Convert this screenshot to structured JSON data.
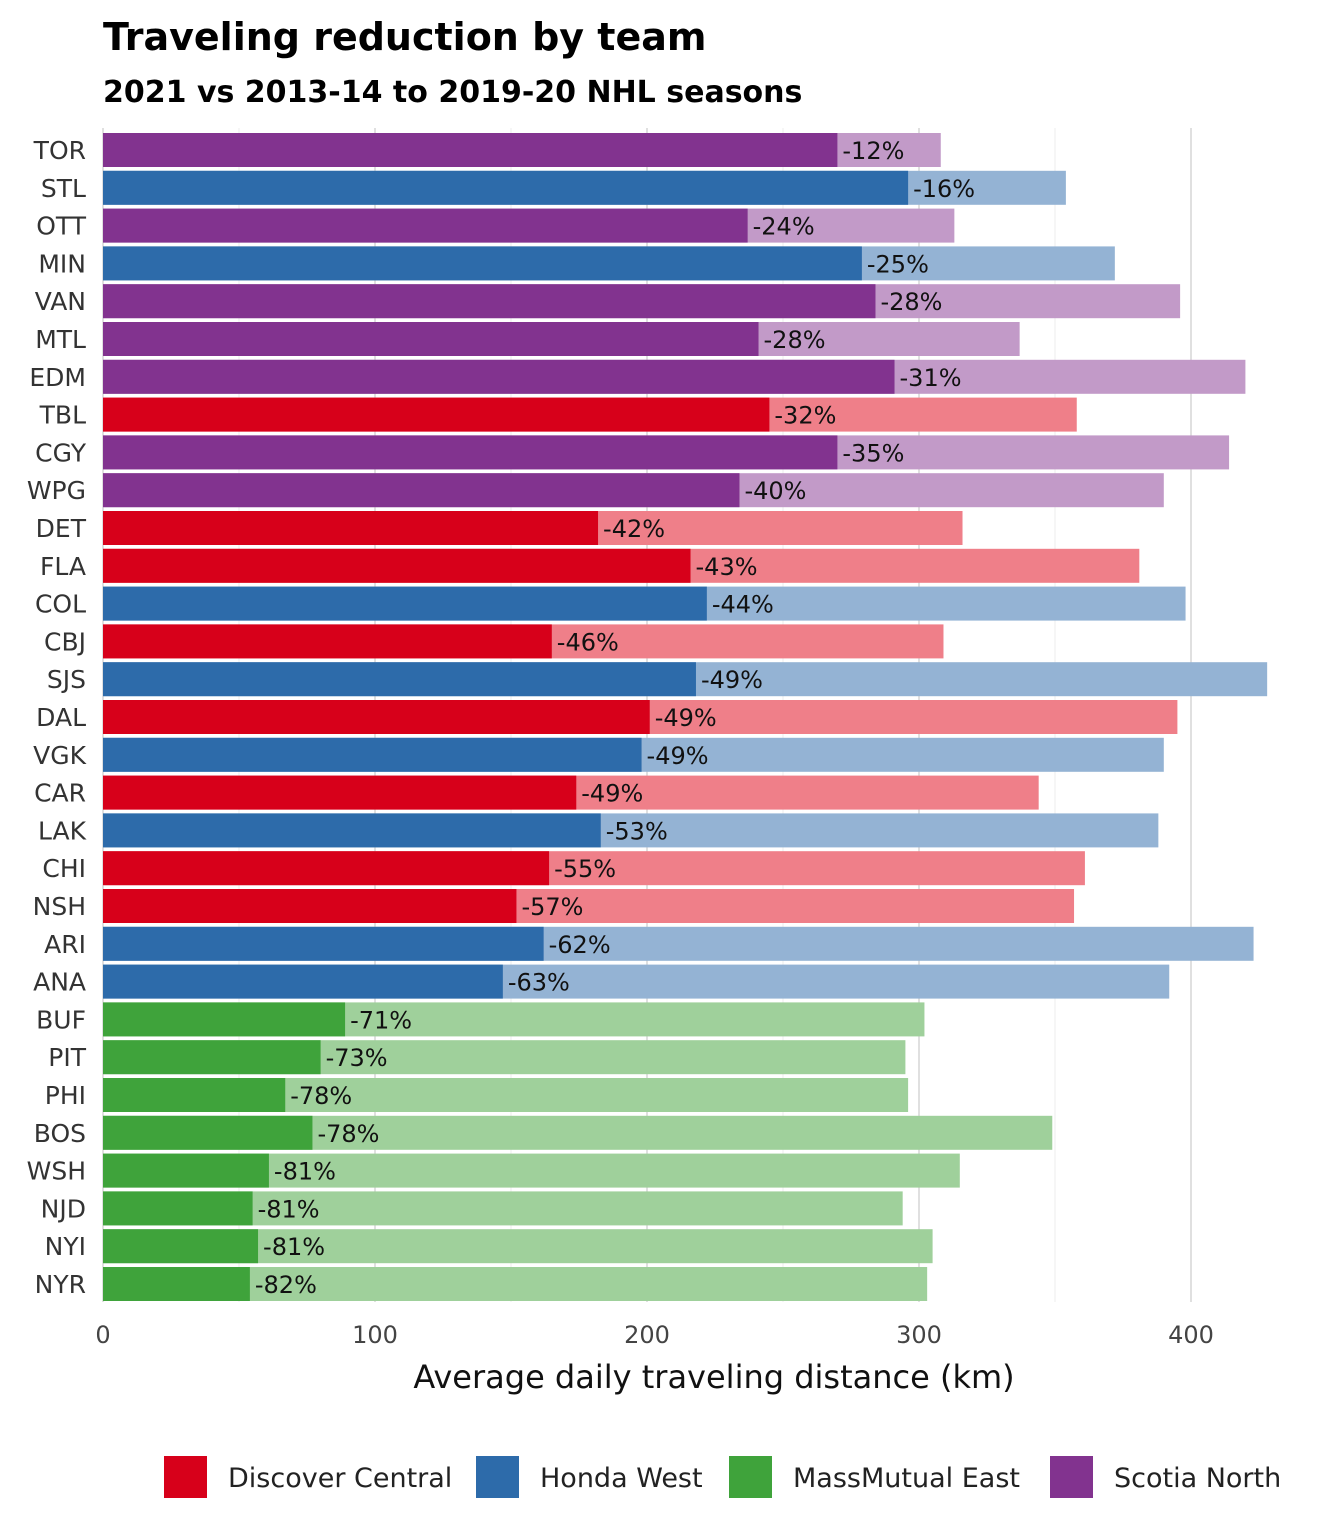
{
  "chart_data": {
    "type": "bar",
    "orientation": "horizontal",
    "title": "Traveling reduction by team",
    "subtitle": "2021 vs 2013-14 to 2019-20 NHL seasons",
    "xlabel": "Average daily traveling distance (km)",
    "ylabel": "",
    "xlim": [
      0,
      430
    ],
    "xticks": [
      0,
      100,
      200,
      300,
      400
    ],
    "grid": true,
    "legend_position": "bottom",
    "divisions": [
      {
        "name": "Discover Central",
        "color": "#D7001A",
        "light_color": "#EF7F89"
      },
      {
        "name": "Honda West",
        "color": "#2D6BAA",
        "light_color": "#94B3D4"
      },
      {
        "name": "MassMutual East",
        "color": "#3FA33B",
        "light_color": "#9FD09B"
      },
      {
        "name": "Scotia North",
        "color": "#82338F",
        "light_color": "#C29AC8"
      }
    ],
    "series_meaning": [
      "2021 season",
      "2013-14 to 2019-20 seasons"
    ],
    "teams": [
      {
        "team": "TOR",
        "division": "Scotia North",
        "current": 270,
        "previous": 308,
        "reduction": "-12%"
      },
      {
        "team": "STL",
        "division": "Honda West",
        "current": 296,
        "previous": 354,
        "reduction": "-16%"
      },
      {
        "team": "OTT",
        "division": "Scotia North",
        "current": 237,
        "previous": 313,
        "reduction": "-24%"
      },
      {
        "team": "MIN",
        "division": "Honda West",
        "current": 279,
        "previous": 372,
        "reduction": "-25%"
      },
      {
        "team": "VAN",
        "division": "Scotia North",
        "current": 284,
        "previous": 396,
        "reduction": "-28%"
      },
      {
        "team": "MTL",
        "division": "Scotia North",
        "current": 241,
        "previous": 337,
        "reduction": "-28%"
      },
      {
        "team": "EDM",
        "division": "Scotia North",
        "current": 291,
        "previous": 420,
        "reduction": "-31%"
      },
      {
        "team": "TBL",
        "division": "Discover Central",
        "current": 245,
        "previous": 358,
        "reduction": "-32%"
      },
      {
        "team": "CGY",
        "division": "Scotia North",
        "current": 270,
        "previous": 414,
        "reduction": "-35%"
      },
      {
        "team": "WPG",
        "division": "Scotia North",
        "current": 234,
        "previous": 390,
        "reduction": "-40%"
      },
      {
        "team": "DET",
        "division": "Discover Central",
        "current": 182,
        "previous": 316,
        "reduction": "-42%"
      },
      {
        "team": "FLA",
        "division": "Discover Central",
        "current": 216,
        "previous": 381,
        "reduction": "-43%"
      },
      {
        "team": "COL",
        "division": "Honda West",
        "current": 222,
        "previous": 398,
        "reduction": "-44%"
      },
      {
        "team": "CBJ",
        "division": "Discover Central",
        "current": 165,
        "previous": 309,
        "reduction": "-46%"
      },
      {
        "team": "SJS",
        "division": "Honda West",
        "current": 218,
        "previous": 428,
        "reduction": "-49%"
      },
      {
        "team": "DAL",
        "division": "Discover Central",
        "current": 201,
        "previous": 395,
        "reduction": "-49%"
      },
      {
        "team": "VGK",
        "division": "Honda West",
        "current": 198,
        "previous": 390,
        "reduction": "-49%"
      },
      {
        "team": "CAR",
        "division": "Discover Central",
        "current": 174,
        "previous": 344,
        "reduction": "-49%"
      },
      {
        "team": "LAK",
        "division": "Honda West",
        "current": 183,
        "previous": 388,
        "reduction": "-53%"
      },
      {
        "team": "CHI",
        "division": "Discover Central",
        "current": 164,
        "previous": 361,
        "reduction": "-55%"
      },
      {
        "team": "NSH",
        "division": "Discover Central",
        "current": 152,
        "previous": 357,
        "reduction": "-57%"
      },
      {
        "team": "ARI",
        "division": "Honda West",
        "current": 162,
        "previous": 423,
        "reduction": "-62%"
      },
      {
        "team": "ANA",
        "division": "Honda West",
        "current": 147,
        "previous": 392,
        "reduction": "-63%"
      },
      {
        "team": "BUF",
        "division": "MassMutual East",
        "current": 89,
        "previous": 302,
        "reduction": "-71%"
      },
      {
        "team": "PIT",
        "division": "MassMutual East",
        "current": 80,
        "previous": 295,
        "reduction": "-73%"
      },
      {
        "team": "PHI",
        "division": "MassMutual East",
        "current": 67,
        "previous": 296,
        "reduction": "-78%"
      },
      {
        "team": "BOS",
        "division": "MassMutual East",
        "current": 77,
        "previous": 349,
        "reduction": "-78%"
      },
      {
        "team": "WSH",
        "division": "MassMutual East",
        "current": 61,
        "previous": 315,
        "reduction": "-81%"
      },
      {
        "team": "NJD",
        "division": "MassMutual East",
        "current": 55,
        "previous": 294,
        "reduction": "-81%"
      },
      {
        "team": "NYI",
        "division": "MassMutual East",
        "current": 57,
        "previous": 305,
        "reduction": "-81%"
      },
      {
        "team": "NYR",
        "division": "MassMutual East",
        "current": 54,
        "previous": 303,
        "reduction": "-82%"
      }
    ]
  }
}
